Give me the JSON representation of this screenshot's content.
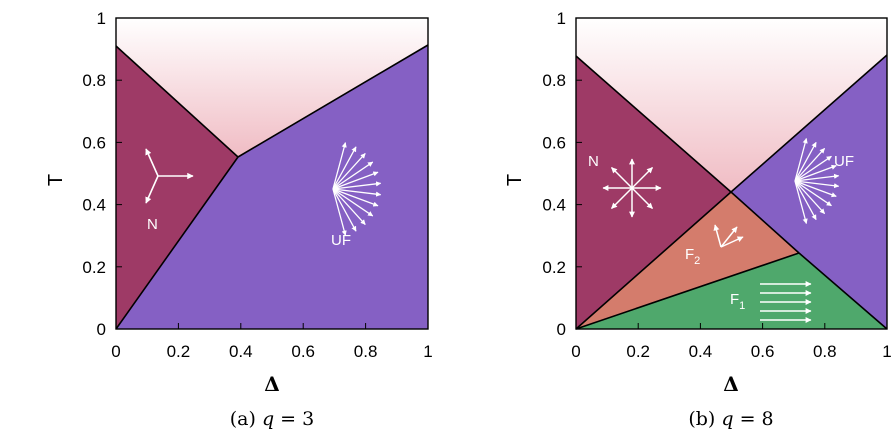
{
  "chart_data": [
    {
      "type": "phase-diagram",
      "caption": "(a) q = 3",
      "caption_prefix": "(a) ",
      "caption_var": "q",
      "caption_eq": " = 3",
      "xlabel": "Δ",
      "ylabel": "T",
      "xlim": [
        0,
        1
      ],
      "ylim": [
        0,
        1
      ],
      "x_ticks": [
        "0",
        "0.2",
        "0.4",
        "0.6",
        "0.8",
        "1"
      ],
      "y_ticks": [
        "0",
        "0.2",
        "0.4",
        "0.6",
        "0.8",
        "1"
      ],
      "boundaries": [
        {
          "from": [
            0,
            0.92
          ],
          "to": [
            0.39,
            0.56
          ]
        },
        {
          "from": [
            0.39,
            0.56
          ],
          "to": [
            1,
            0.92
          ]
        },
        {
          "from": [
            0,
            0
          ],
          "to": [
            0.39,
            0.56
          ]
        }
      ],
      "phases": [
        {
          "label": "N",
          "color": "#9e3a66"
        },
        {
          "label": "UF",
          "color": "#8560c4"
        }
      ]
    },
    {
      "type": "phase-diagram",
      "caption": "(b) q = 8",
      "caption_prefix": "(b) ",
      "caption_var": "q",
      "caption_eq": " = 8",
      "xlabel": "Δ",
      "ylabel": "T",
      "xlim": [
        0,
        1
      ],
      "ylim": [
        0,
        1
      ],
      "x_ticks": [
        "0",
        "0.2",
        "0.4",
        "0.6",
        "0.8",
        "1"
      ],
      "y_ticks": [
        "0",
        "0.2",
        "0.4",
        "0.6",
        "0.8",
        "1"
      ],
      "boundaries": [
        {
          "from": [
            0,
            0.89
          ],
          "to": [
            0.5,
            0.44
          ]
        },
        {
          "from": [
            0.5,
            0.44
          ],
          "to": [
            1,
            0.89
          ]
        },
        {
          "from": [
            0,
            0
          ],
          "to": [
            0.5,
            0.44
          ]
        },
        {
          "from": [
            0.5,
            0.44
          ],
          "to": [
            0.72,
            0.25
          ]
        },
        {
          "from": [
            0,
            0
          ],
          "to": [
            0.72,
            0.25
          ]
        },
        {
          "from": [
            0.72,
            0.25
          ],
          "to": [
            1,
            0
          ]
        }
      ],
      "phases": [
        {
          "label": "N",
          "color": "#9e3a66"
        },
        {
          "label": "UF",
          "color": "#8560c4"
        },
        {
          "label": "F",
          "sub": "2",
          "color": "#d47c6c"
        },
        {
          "label": "F",
          "sub": "1",
          "color": "#4fa86c"
        }
      ]
    }
  ]
}
